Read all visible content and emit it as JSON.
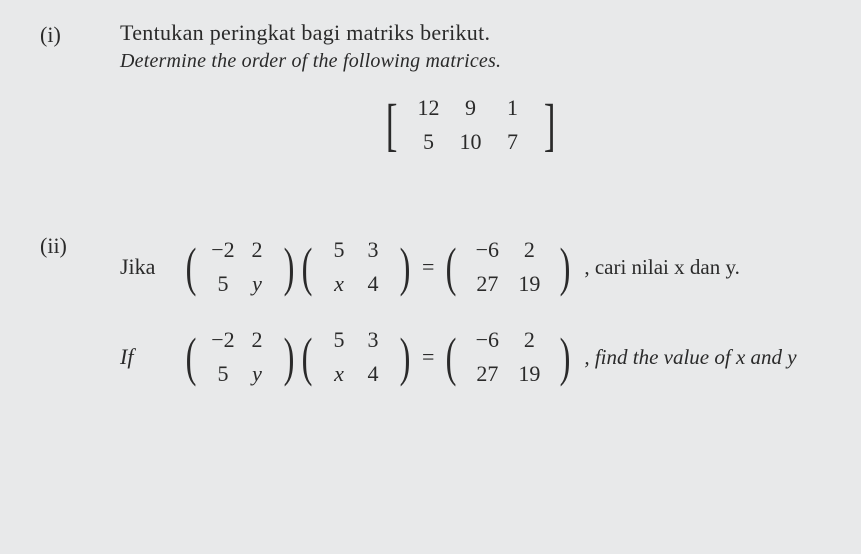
{
  "part_i": {
    "label": "(i)",
    "title": "Tentukan peringkat bagi matriks berikut.",
    "subtitle": "Determine the order of the following matrices.",
    "matrix": {
      "bracket": "square",
      "rows": [
        [
          "12",
          "9",
          "1"
        ],
        [
          "5",
          "10",
          "7"
        ]
      ]
    }
  },
  "part_ii": {
    "label": "(ii)",
    "line1": {
      "prefix": "Jika",
      "A": {
        "bracket": "paren",
        "rows": [
          [
            "−2",
            "2"
          ],
          [
            "5",
            "y"
          ]
        ]
      },
      "B": {
        "bracket": "paren",
        "rows": [
          [
            "5",
            "3"
          ],
          [
            "x",
            "4"
          ]
        ]
      },
      "eq": "=",
      "C": {
        "bracket": "paren",
        "rows": [
          [
            "−6",
            "2"
          ],
          [
            "27",
            "19"
          ]
        ]
      },
      "tail": ", cari nilai x dan y."
    },
    "line2": {
      "prefix": "If",
      "A": {
        "bracket": "paren",
        "rows": [
          [
            "−2",
            "2"
          ],
          [
            "5",
            "y"
          ]
        ]
      },
      "B": {
        "bracket": "paren",
        "rows": [
          [
            "5",
            "3"
          ],
          [
            "x",
            "4"
          ]
        ]
      },
      "eq": "=",
      "C": {
        "bracket": "paren",
        "rows": [
          [
            "−6",
            "2"
          ],
          [
            "27",
            "19"
          ]
        ]
      },
      "tail": ", find the value of x and y"
    }
  }
}
